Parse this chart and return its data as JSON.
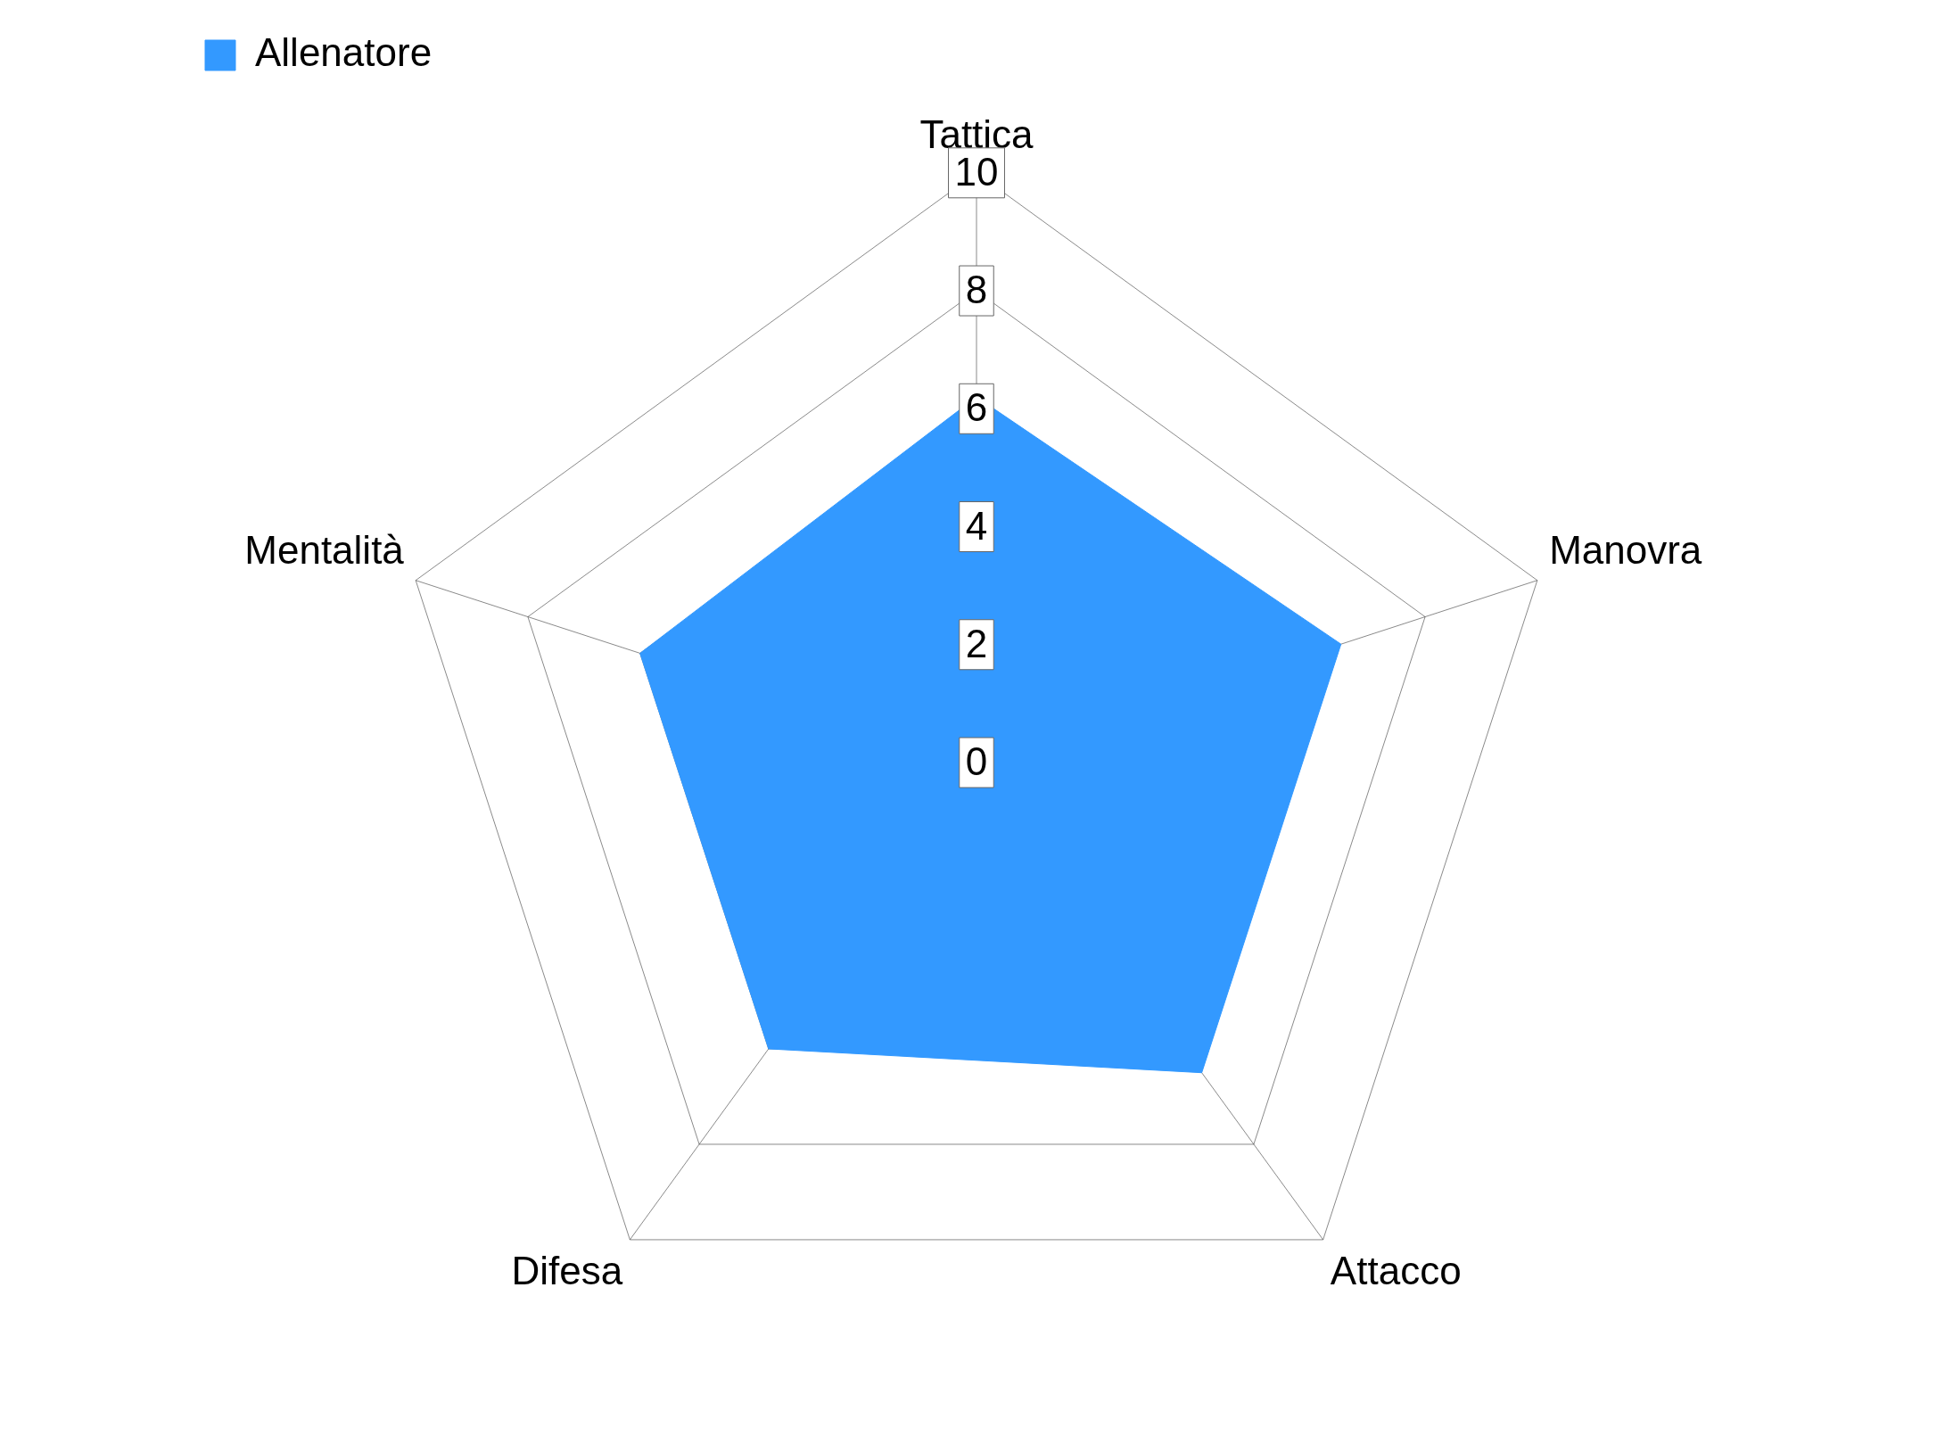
{
  "chart_data": {
    "type": "radar",
    "categories": [
      "Tattica",
      "Manovra",
      "Attacco",
      "Difesa",
      "Mentalità"
    ],
    "series": [
      {
        "name": "Allenatore",
        "color": "#3399ff",
        "values": [
          6.2,
          6.5,
          6.5,
          6.0,
          6.0
        ]
      }
    ],
    "ylim": [
      0,
      10
    ],
    "yticks": [
      0,
      2,
      4,
      6,
      8,
      10
    ],
    "grid": true,
    "legend": "top left"
  }
}
